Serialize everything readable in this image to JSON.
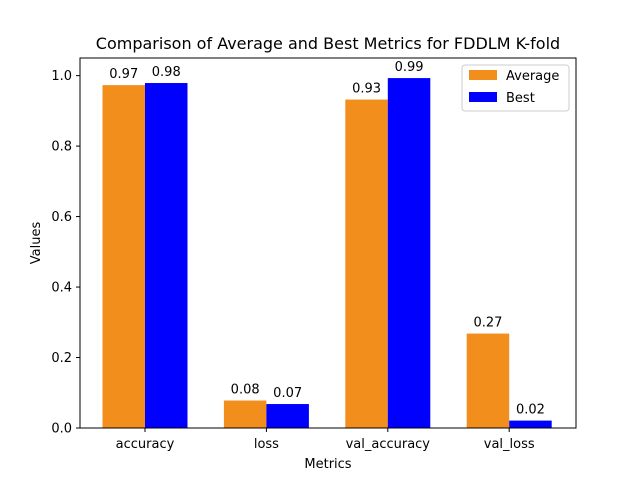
{
  "chart_data": {
    "type": "bar",
    "title": "Comparison of Average and Best Metrics for FDDLM K-fold",
    "xlabel": "Metrics",
    "ylabel": "Values",
    "categories": [
      "accuracy",
      "loss",
      "val_accuracy",
      "val_loss"
    ],
    "series": [
      {
        "name": "Average",
        "color": "#f28e1c",
        "values": [
          0.973,
          0.078,
          0.932,
          0.268
        ],
        "labels": [
          "0.97",
          "0.08",
          "0.93",
          "0.27"
        ]
      },
      {
        "name": "Best",
        "color": "#0000ff",
        "values": [
          0.979,
          0.068,
          0.993,
          0.021
        ],
        "labels": [
          "0.98",
          "0.07",
          "0.99",
          "0.02"
        ]
      }
    ],
    "ylim": [
      0,
      1.05
    ],
    "yticks": [
      "0.0",
      "0.2",
      "0.4",
      "0.6",
      "0.8",
      "1.0"
    ],
    "legend_position": "top-right",
    "grid": false
  }
}
